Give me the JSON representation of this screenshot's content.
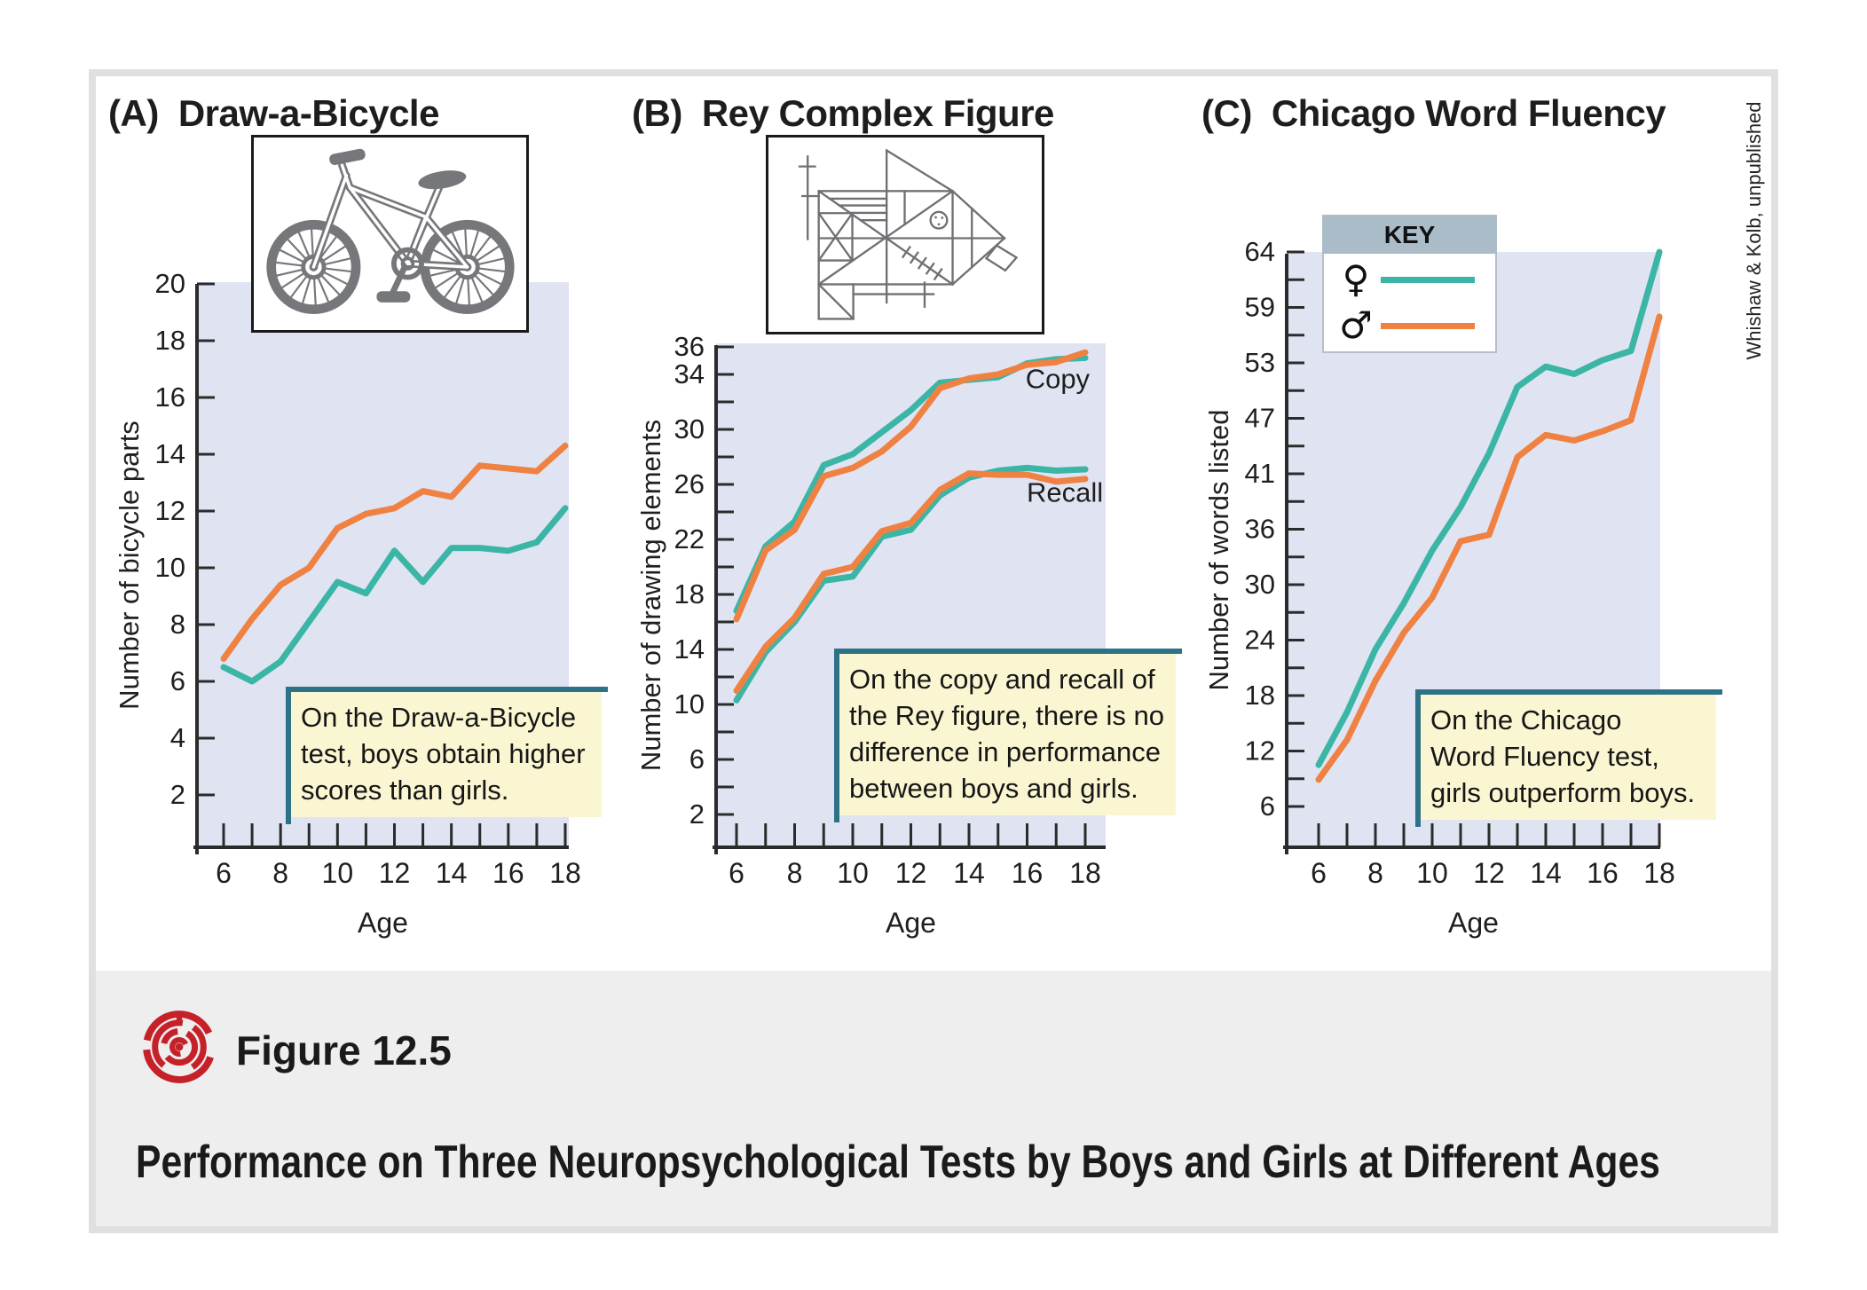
{
  "colors": {
    "teal": "#3bb5a6",
    "orange": "#ef8142",
    "lavender": "#e0e4f2",
    "callout_bg": "#fbf6d2",
    "callout_rule": "#2e7288",
    "key_header": "#a9bcc7",
    "axis": "#2b2b2b",
    "band": "#eeeeee",
    "frame": "#e0e0e0",
    "logo_red": "#c62129",
    "drawing_gray": "#76777b"
  },
  "credit": "Whishaw & Kolb, unpublished",
  "footer": {
    "figure_label": "Figure 12.5",
    "title": "Performance on Three Neuropsychological Tests by Boys and Girls at Different Ages"
  },
  "key": {
    "title": "KEY",
    "items": [
      {
        "symbol": "♀",
        "series": "girls"
      },
      {
        "symbol": "♂",
        "series": "boys"
      }
    ]
  },
  "panels": [
    {
      "marker": "(A)",
      "title": "Draw-a-Bicycle",
      "callout": "On the Draw-a-Bicycle\ntest, boys obtain higher\nscores than girls."
    },
    {
      "marker": "(B)",
      "title": "Rey Complex Figure",
      "callout": "On the copy and recall of\nthe Rey figure, there is no\ndifference in performance\nbetween boys and girls."
    },
    {
      "marker": "(C)",
      "title": "Chicago Word Fluency",
      "callout": "On the Chicago\nWord Fluency test,\ngirls outperform boys."
    }
  ],
  "chart_data": [
    {
      "type": "line",
      "title": "Draw-a-Bicycle",
      "xlabel": "Age",
      "ylabel": "Number of bicycle parts",
      "x": [
        6,
        7,
        8,
        9,
        10,
        11,
        12,
        13,
        14,
        15,
        16,
        17,
        18
      ],
      "x_tick_labels": [
        6,
        8,
        10,
        12,
        14,
        16,
        18
      ],
      "ylim": [
        0,
        20
      ],
      "y_ticks": [
        2,
        4,
        6,
        8,
        10,
        12,
        14,
        16,
        18,
        20
      ],
      "y_tick_labels": [
        2,
        4,
        6,
        8,
        10,
        12,
        14,
        16,
        18,
        20
      ],
      "legend_position": "none",
      "grid": false,
      "series": [
        {
          "name": "girls",
          "color": "#3bb5a6",
          "values": [
            6.5,
            6.0,
            6.7,
            8.1,
            9.5,
            9.1,
            10.6,
            9.5,
            10.7,
            10.7,
            10.6,
            10.9,
            12.1
          ]
        },
        {
          "name": "boys",
          "color": "#ef8142",
          "values": [
            6.8,
            8.2,
            9.4,
            10.0,
            11.4,
            11.9,
            12.1,
            12.7,
            12.5,
            13.6,
            13.5,
            13.4,
            14.3
          ]
        }
      ],
      "annotations": []
    },
    {
      "type": "line",
      "title": "Rey Complex Figure",
      "xlabel": "Age",
      "ylabel": "Number of drawing elements",
      "x": [
        6,
        7,
        8,
        9,
        10,
        11,
        12,
        13,
        14,
        15,
        16,
        17,
        18
      ],
      "x_tick_labels": [
        6,
        8,
        10,
        12,
        14,
        16,
        18
      ],
      "ylim": [
        0,
        36
      ],
      "y_ticks": [
        2,
        4,
        6,
        8,
        10,
        12,
        14,
        16,
        18,
        20,
        22,
        24,
        26,
        28,
        30,
        32,
        34,
        36
      ],
      "y_tick_labels": [
        2,
        6,
        10,
        14,
        18,
        22,
        26,
        30,
        34,
        36
      ],
      "legend_position": "none",
      "grid": false,
      "series": [
        {
          "name": "copy girls",
          "color": "#3bb5a6",
          "values": [
            16.8,
            21.5,
            23.3,
            27.4,
            28.2,
            29.8,
            31.4,
            33.4,
            33.6,
            33.8,
            34.8,
            35.1,
            35.2
          ]
        },
        {
          "name": "copy boys",
          "color": "#ef8142",
          "values": [
            16.2,
            21.2,
            22.7,
            26.6,
            27.2,
            28.4,
            30.2,
            33.0,
            33.7,
            34.0,
            34.7,
            34.9,
            35.6
          ]
        },
        {
          "name": "recall girls",
          "color": "#3bb5a6",
          "values": [
            10.3,
            13.8,
            16.0,
            19.0,
            19.3,
            22.2,
            22.7,
            25.2,
            26.5,
            27.0,
            27.2,
            27.0,
            27.1
          ]
        },
        {
          "name": "recall boys",
          "color": "#ef8142",
          "values": [
            11.0,
            14.2,
            16.3,
            19.5,
            20.0,
            22.6,
            23.2,
            25.6,
            26.8,
            26.7,
            26.7,
            26.2,
            26.4
          ]
        }
      ],
      "annotations": [
        {
          "text": "Copy",
          "age": 17.05,
          "value": 33.0
        },
        {
          "text": "Recall",
          "age": 17.3,
          "value": 24.75
        }
      ]
    },
    {
      "type": "line",
      "title": "Chicago Word Fluency",
      "xlabel": "Age",
      "ylabel": "Number of words listed",
      "x": [
        6,
        7,
        8,
        9,
        10,
        11,
        12,
        13,
        14,
        15,
        16,
        17,
        18
      ],
      "x_tick_labels": [
        6,
        8,
        10,
        12,
        14,
        16,
        18
      ],
      "ylim": [
        0,
        64
      ],
      "y_ticks": [
        6,
        12,
        18,
        24,
        30,
        36,
        41,
        47,
        53,
        59,
        64
      ],
      "y_tick_labels": [
        6,
        12,
        18,
        24,
        30,
        36,
        41,
        47,
        53,
        59,
        64
      ],
      "y_minor_between": true,
      "legend_position": "top-left",
      "grid": false,
      "series": [
        {
          "name": "girls",
          "color": "#3bb5a6",
          "values": [
            10.5,
            16.2,
            23.0,
            28.0,
            33.7,
            38.0,
            43.2,
            50.4,
            52.6,
            51.8,
            53.3,
            54.3,
            64.0
          ]
        },
        {
          "name": "boys",
          "color": "#ef8142",
          "values": [
            8.9,
            13.2,
            19.6,
            24.8,
            28.6,
            34.7,
            35.4,
            42.8,
            45.2,
            44.6,
            45.6,
            46.8,
            58.0
          ]
        }
      ],
      "annotations": []
    }
  ]
}
